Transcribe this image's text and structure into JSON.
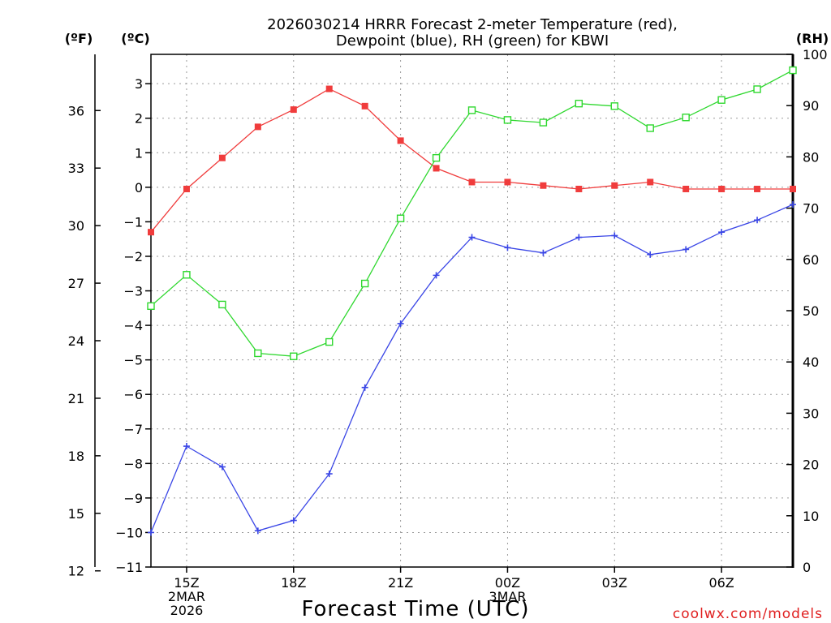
{
  "chart_data": {
    "type": "line",
    "title": "2026030214 HRRR Forecast 2-meter Temperature (red),",
    "subtitle": "Dewpoint (blue), RH (green) for KBWI",
    "xlabel": "Forecast Time (UTC)",
    "credit": "coolwx.com/models",
    "unit_left_outer": "(ºF)",
    "unit_left_inner": "(ºC)",
    "unit_right": "(RH)",
    "x": [
      "14Z",
      "15Z",
      "16Z",
      "17Z",
      "18Z",
      "19Z",
      "20Z",
      "21Z",
      "22Z",
      "23Z",
      "00Z",
      "01Z",
      "02Z",
      "03Z",
      "04Z",
      "05Z",
      "06Z",
      "07Z",
      "08Z"
    ],
    "x_ticks": [
      {
        "index": 1,
        "lines": [
          "15Z",
          "2MAR",
          "2026"
        ]
      },
      {
        "index": 4,
        "lines": [
          "18Z"
        ]
      },
      {
        "index": 7,
        "lines": [
          "21Z"
        ]
      },
      {
        "index": 10,
        "lines": [
          "00Z",
          "3MAR"
        ]
      },
      {
        "index": 13,
        "lines": [
          "03Z"
        ]
      },
      {
        "index": 16,
        "lines": [
          "06Z"
        ]
      }
    ],
    "y_celsius": {
      "min": -11,
      "max": 3.85,
      "ticks": [
        -11,
        -10,
        -9,
        -8,
        -7,
        -6,
        -5,
        -4,
        -3,
        -2,
        -1,
        0,
        1,
        2,
        3
      ]
    },
    "y_fahrenheit": {
      "ticks": [
        12,
        15,
        18,
        21,
        24,
        27,
        30,
        33,
        36
      ]
    },
    "y_rh": {
      "min": 0,
      "max": 100,
      "ticks": [
        0,
        10,
        20,
        30,
        40,
        50,
        60,
        70,
        80,
        90,
        100
      ]
    },
    "grid": true,
    "series": [
      {
        "name": "2-meter Temperature",
        "axis": "celsius",
        "color": "#f03c3c",
        "marker": "filled-square",
        "values": [
          -1.3,
          -0.05,
          0.85,
          1.75,
          2.25,
          2.85,
          2.35,
          1.35,
          0.55,
          0.15,
          0.15,
          0.05,
          -0.05,
          0.05,
          0.15,
          -0.05,
          -0.05,
          -0.05,
          -0.05
        ]
      },
      {
        "name": "Dewpoint",
        "axis": "celsius",
        "color": "#3a46e6",
        "marker": "plus",
        "values": [
          -10.0,
          -7.5,
          -8.1,
          -9.95,
          -9.65,
          -8.3,
          -5.8,
          -3.95,
          -2.55,
          -1.45,
          -1.75,
          -1.9,
          -1.45,
          -1.4,
          -1.95,
          -1.8,
          -1.3,
          -0.95,
          -0.5
        ]
      },
      {
        "name": "RH",
        "axis": "rh",
        "color": "#2fd82f",
        "marker": "open-square",
        "values": [
          50.9,
          57.0,
          51.2,
          41.7,
          41.1,
          43.9,
          55.3,
          68.0,
          79.8,
          89.1,
          87.2,
          86.7,
          90.4,
          89.9,
          85.6,
          87.7,
          91.1,
          93.2,
          96.9
        ]
      }
    ]
  }
}
